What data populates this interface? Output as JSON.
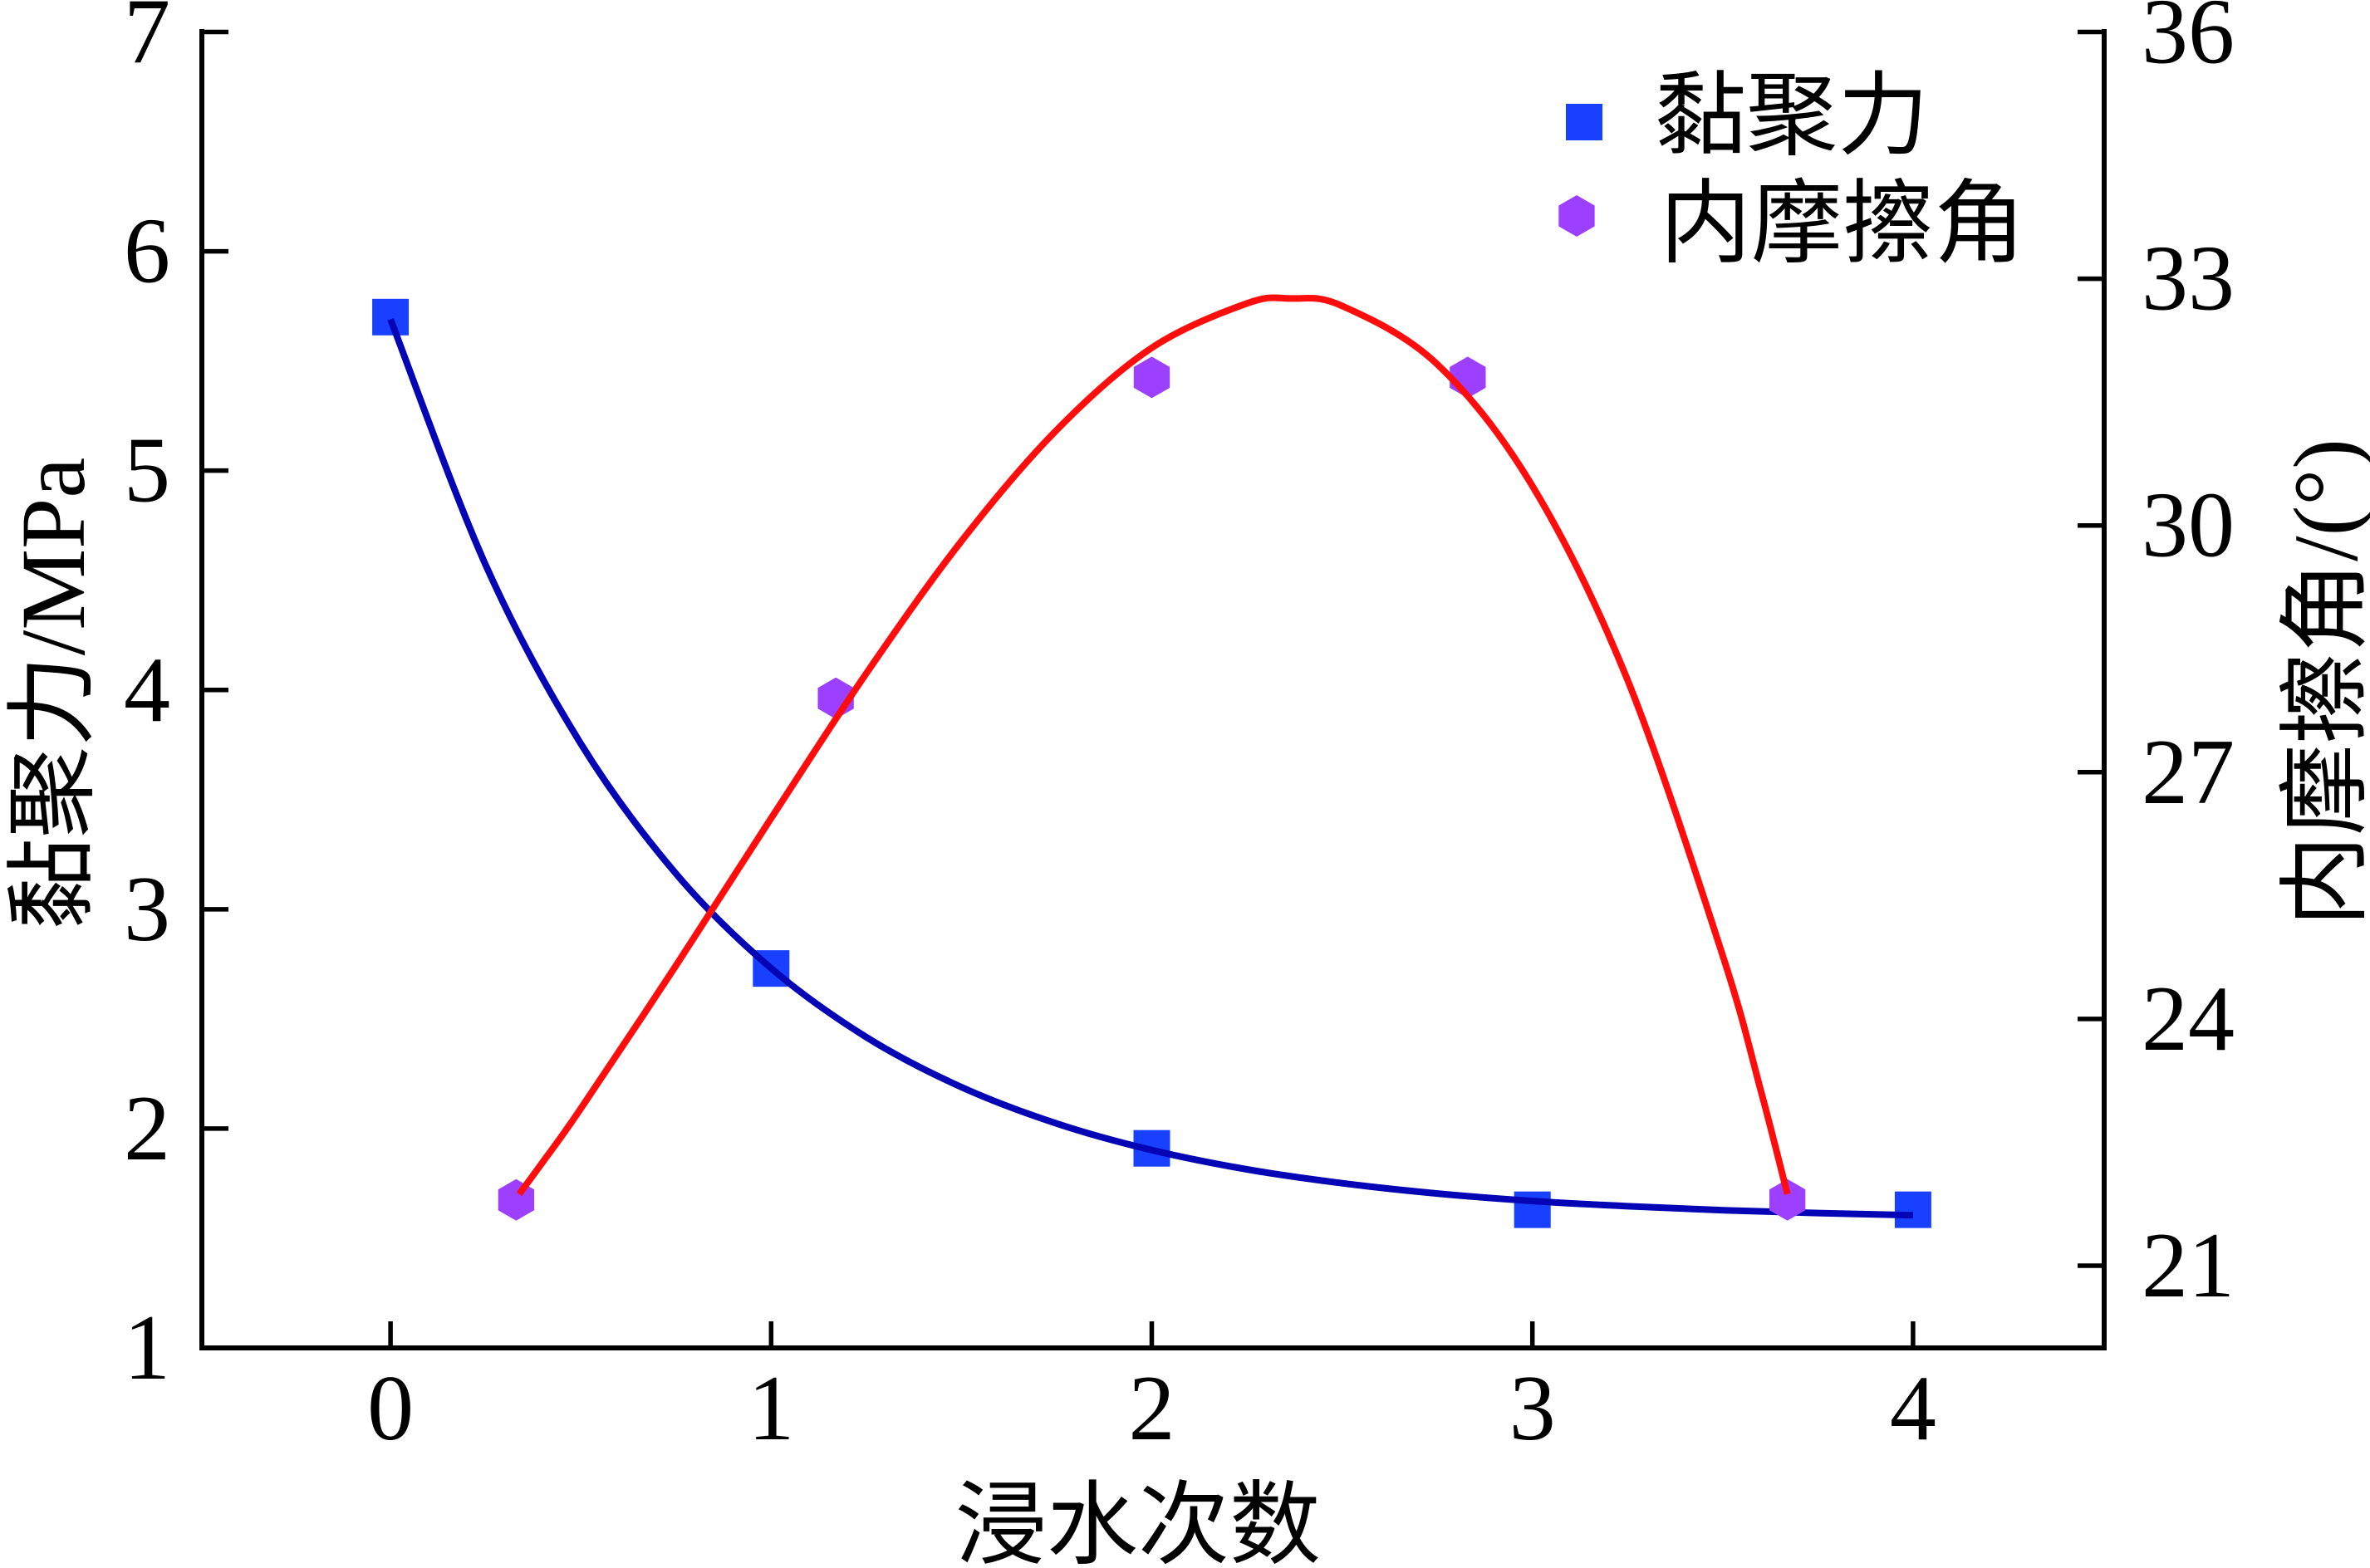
{
  "figure": {
    "x_axis_title": "浸水次数",
    "left_axis_title": "黏聚力/MPa",
    "right_axis_title": "内摩擦角/(°)",
    "legend": [
      {
        "label": "黏聚力",
        "marker": "square",
        "color": "#1a40ff"
      },
      {
        "label": "内摩擦角",
        "marker": "hexagon",
        "color": "#9d3fff"
      }
    ],
    "axis_color": "#000000"
  },
  "chart_data": {
    "type": "scatter",
    "title": "",
    "xlabel": "浸水次数",
    "ylabel": "黏聚力/MPa",
    "y2label": "内摩擦角/(°)",
    "xlim": [
      -0.5,
      4.5
    ],
    "ylim": [
      1,
      7
    ],
    "y2lim": [
      20,
      36
    ],
    "xticks": [
      0,
      1,
      2,
      3,
      4
    ],
    "xtick_labels": [
      "0",
      "1",
      "2",
      "3",
      "4"
    ],
    "yticks": [
      1,
      2,
      3,
      4,
      5,
      6,
      7
    ],
    "ytick_labels": [
      "1",
      "2",
      "3",
      "4",
      "5",
      "6",
      "7"
    ],
    "y2ticks": [
      21,
      24,
      27,
      30,
      33,
      36
    ],
    "y2tick_labels": [
      "21",
      "24",
      "27",
      "30",
      "33",
      "36"
    ],
    "grid": false,
    "legend_position": "upper right",
    "series": [
      {
        "name": "黏聚力",
        "axis": "left",
        "marker": "square",
        "color": "#1a40ff",
        "x": [
          0,
          1,
          2,
          3,
          4
        ],
        "y": [
          5.7,
          2.73,
          1.91,
          1.63,
          1.63
        ],
        "fit": {
          "type": "exponential decay",
          "color": "#0505b5",
          "x": [
            0,
            0.25,
            0.5,
            0.75,
            1.0,
            1.25,
            1.5,
            1.75,
            2.0,
            2.25,
            2.5,
            2.75,
            3.0,
            3.25,
            3.5,
            3.75,
            4.0
          ],
          "y": [
            5.69,
            4.57,
            3.755,
            3.162,
            2.731,
            2.417,
            2.189,
            2.023,
            1.902,
            1.814,
            1.751,
            1.704,
            1.67,
            1.646,
            1.628,
            1.615,
            1.605
          ]
        }
      },
      {
        "name": "内摩擦角",
        "axis": "right",
        "marker": "hexagon",
        "color": "#9d3fff",
        "x": [
          0.33,
          1.17,
          2.0,
          2.83,
          3.67
        ],
        "y": [
          21.8,
          27.9,
          31.8,
          31.8,
          21.8
        ],
        "fit": {
          "type": "polynomial",
          "color": "#ff0d0d",
          "x": [
            0.338,
            0.4,
            0.5,
            0.75,
            1.0,
            1.25,
            1.5,
            1.75,
            2.0,
            2.25,
            2.364,
            2.5,
            2.75,
            3.0,
            3.25,
            3.5,
            3.6,
            3.67
          ],
          "y": [
            21.87,
            22.26,
            22.91,
            24.65,
            26.44,
            28.2,
            29.81,
            31.16,
            32.16,
            32.7,
            32.76,
            32.67,
            31.96,
            30.48,
            28.12,
            24.77,
            23.13,
            21.87
          ]
        }
      }
    ]
  }
}
